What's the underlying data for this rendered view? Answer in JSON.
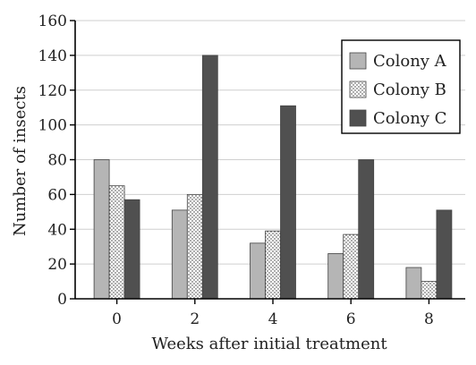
{
  "chart_data": {
    "type": "bar",
    "xlabel": "Weeks after initial treatment",
    "ylabel": "Number of insects",
    "categories": [
      "0",
      "2",
      "4",
      "6",
      "8"
    ],
    "ylim": [
      0,
      160
    ],
    "yticks": [
      0,
      20,
      40,
      60,
      80,
      100,
      120,
      140,
      160
    ],
    "grid": "horizontal",
    "legend_position": "top-right",
    "series": [
      {
        "name": "Colony A",
        "values": [
          80,
          51,
          32,
          26,
          18
        ],
        "color": "#b5b5b5",
        "pattern": "solid-light"
      },
      {
        "name": "Colony B",
        "values": [
          65,
          60,
          39,
          37,
          10
        ],
        "color": "#ffffff",
        "pattern": "dotted"
      },
      {
        "name": "Colony C",
        "values": [
          57,
          140,
          111,
          80,
          51
        ],
        "color": "#505050",
        "pattern": "solid-dark"
      }
    ]
  }
}
